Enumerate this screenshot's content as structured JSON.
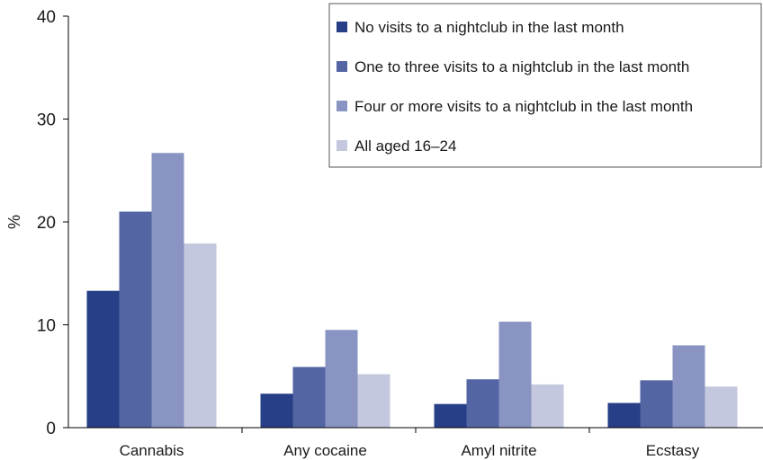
{
  "chart_data": {
    "type": "bar",
    "title": "",
    "xlabel": "",
    "ylabel": "%",
    "ylim": [
      0,
      40
    ],
    "yticks": [
      0,
      10,
      20,
      30,
      40
    ],
    "categories": [
      "Cannabis",
      "Any cocaine",
      "Amyl nitrite",
      "Ecstasy"
    ],
    "series": [
      {
        "name": "No visits to a nightclub in the last month",
        "color": "#263f86",
        "values": [
          13.3,
          3.3,
          2.3,
          2.4
        ]
      },
      {
        "name": "One to three visits to a nightclub in the last month",
        "color": "#5365a3",
        "values": [
          21.0,
          5.9,
          4.7,
          4.6
        ]
      },
      {
        "name": "Four or more visits to a nightclub in the last month",
        "color": "#8a94c3",
        "values": [
          26.7,
          9.5,
          10.3,
          8.0
        ]
      },
      {
        "name": "All aged 16–24",
        "color": "#c4c8de",
        "values": [
          17.9,
          5.2,
          4.2,
          4.0
        ]
      }
    ],
    "grid": false,
    "legend_position": "top-right"
  }
}
